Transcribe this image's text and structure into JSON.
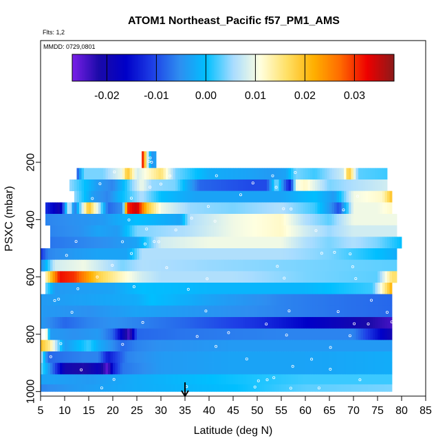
{
  "chart_data": {
    "type": "heatmap",
    "title": "ATOM1 Northeast_Pacific f57_PM1_AMS",
    "flights_label": "Flts: 1,2",
    "date_label": "MMDD: 0729,0801",
    "xlabel": "Latitude (deg N)",
    "ylabel": "PSXC (mbar)",
    "xlim": [
      5,
      85
    ],
    "ylim": [
      1000,
      60
    ],
    "y_reversed": true,
    "x_ticks": [
      "5",
      "10",
      "15",
      "20",
      "25",
      "30",
      "35",
      "40",
      "45",
      "50",
      "55",
      "60",
      "65",
      "70",
      "75",
      "80",
      "85"
    ],
    "y_ticks": [
      "200",
      "400",
      "600",
      "800",
      "1000"
    ],
    "colorbar": {
      "range": [
        -0.027,
        0.038
      ],
      "ticks": [
        "-0.02",
        "-0.01",
        "0.00",
        "0.01",
        "0.02",
        "0.03"
      ],
      "tick_values": [
        -0.02,
        -0.01,
        0.0,
        0.01,
        0.02,
        0.03
      ],
      "colors": [
        "#7a1fe8",
        "#1a0aa8",
        "#0000c8",
        "#1e3fe6",
        "#2e8ef0",
        "#00bfff",
        "#a8dcff",
        "#ffffe0",
        "#ffe066",
        "#ffb000",
        "#ff6a00",
        "#ee0000",
        "#8b1a1a"
      ]
    },
    "marker_latitude": 35,
    "levels": [
      {
        "p": 200,
        "range": [
          26,
          29
        ],
        "keys": [
          [
            26,
            0.036
          ],
          [
            27,
            0.012
          ],
          [
            28,
            -0.005
          ],
          [
            29,
            -0.003
          ]
        ]
      },
      {
        "p": 240,
        "range": [
          12.5,
          77
        ],
        "keys": [
          [
            12.5,
            -0.01
          ],
          [
            14,
            0.004
          ],
          [
            18,
            0.004
          ],
          [
            22,
            0.01
          ],
          [
            23,
            0.02
          ],
          [
            25,
            0.008
          ],
          [
            30,
            0.016
          ],
          [
            33,
            0.004
          ],
          [
            40,
            -0.002
          ],
          [
            48,
            -0.003
          ],
          [
            53,
            -0.004
          ],
          [
            56,
            -0.003
          ],
          [
            58,
            0.004
          ],
          [
            62,
            0.002
          ],
          [
            68,
            0.008
          ],
          [
            69,
            0.02
          ],
          [
            71,
            0.003
          ],
          [
            77,
            0.002
          ]
        ]
      },
      {
        "p": 280,
        "range": [
          11,
          77
        ],
        "keys": [
          [
            11,
            0.005
          ],
          [
            17,
            -0.004
          ],
          [
            20,
            -0.006
          ],
          [
            22,
            -0.001
          ],
          [
            26,
            0.01
          ],
          [
            28,
            0.005
          ],
          [
            33,
            0.004
          ],
          [
            38,
            -0.008
          ],
          [
            48,
            -0.01
          ],
          [
            52,
            -0.01
          ],
          [
            54,
            0.005
          ],
          [
            56,
            -0.01
          ],
          [
            57,
            -0.014
          ],
          [
            58,
            0.01
          ],
          [
            60,
            0.012
          ],
          [
            65,
            0.004
          ],
          [
            70,
            0.006
          ],
          [
            77,
            0.008
          ]
        ]
      },
      {
        "p": 320,
        "range": [
          12,
          78
        ],
        "keys": [
          [
            12,
            0.005
          ],
          [
            16,
            -0.004
          ],
          [
            19,
            -0.006
          ],
          [
            22,
            0.0
          ],
          [
            26,
            0.006
          ],
          [
            30,
            0.0
          ],
          [
            37,
            -0.003
          ],
          [
            45,
            -0.003
          ],
          [
            55,
            -0.003
          ],
          [
            62,
            0.0
          ],
          [
            66,
            -0.004
          ],
          [
            70,
            0.01
          ],
          [
            76,
            0.012
          ],
          [
            78,
            0.02
          ]
        ]
      },
      {
        "p": 360,
        "range": [
          6,
          78
        ],
        "keys": [
          [
            6,
            -0.012
          ],
          [
            9,
            -0.02
          ],
          [
            11,
            0.01
          ],
          [
            12,
            -0.008
          ],
          [
            15,
            0.02
          ],
          [
            17,
            0.008
          ],
          [
            19,
            -0.008
          ],
          [
            22,
            -0.005
          ],
          [
            23,
            0.03
          ],
          [
            25,
            0.035
          ],
          [
            27,
            0.02
          ],
          [
            30,
            0.01
          ],
          [
            36,
            0.005
          ],
          [
            45,
            0.004
          ],
          [
            55,
            0.006
          ],
          [
            62,
            0.002
          ],
          [
            65,
            -0.004
          ],
          [
            67,
            -0.01
          ],
          [
            70,
            0.01
          ],
          [
            75,
            0.01
          ],
          [
            78,
            0.012
          ]
        ]
      },
      {
        "p": 400,
        "range": [
          6,
          79
        ],
        "keys": [
          [
            6,
            -0.006
          ],
          [
            12,
            -0.005
          ],
          [
            18,
            -0.004
          ],
          [
            25,
            0.0
          ],
          [
            34,
            -0.003
          ],
          [
            36,
            0.006
          ],
          [
            45,
            0.01
          ],
          [
            55,
            0.012
          ],
          [
            60,
            0.006
          ],
          [
            65,
            0.003
          ],
          [
            70,
            0.01
          ],
          [
            79,
            0.01
          ]
        ]
      },
      {
        "p": 440,
        "range": [
          7,
          79
        ],
        "keys": [
          [
            7,
            -0.006
          ],
          [
            13,
            -0.005
          ],
          [
            17,
            -0.003
          ],
          [
            21,
            -0.004
          ],
          [
            25,
            0.004
          ],
          [
            35,
            0.006
          ],
          [
            45,
            0.01
          ],
          [
            55,
            0.012
          ],
          [
            60,
            0.008
          ],
          [
            65,
            0.005
          ],
          [
            70,
            0.008
          ],
          [
            79,
            0.008
          ]
        ]
      },
      {
        "p": 480,
        "range": [
          7,
          80
        ],
        "keys": [
          [
            7,
            -0.007
          ],
          [
            13,
            -0.006
          ],
          [
            19,
            -0.005
          ],
          [
            25,
            -0.003
          ],
          [
            30,
            0.008
          ],
          [
            40,
            0.01
          ],
          [
            55,
            0.01
          ],
          [
            60,
            0.006
          ],
          [
            65,
            0.004
          ],
          [
            70,
            0.006
          ],
          [
            75,
            0.004
          ],
          [
            80,
            0.0
          ]
        ]
      },
      {
        "p": 520,
        "range": [
          5,
          79
        ],
        "keys": [
          [
            5,
            -0.012
          ],
          [
            6.5,
            -0.006
          ],
          [
            12,
            -0.004
          ],
          [
            17,
            -0.003
          ],
          [
            23,
            -0.003
          ],
          [
            26,
            0.006
          ],
          [
            40,
            0.006
          ],
          [
            55,
            0.006
          ],
          [
            65,
            0.004
          ],
          [
            75,
            0.0
          ],
          [
            79,
            -0.002
          ]
        ]
      },
      {
        "p": 560,
        "range": [
          5,
          79
        ],
        "keys": [
          [
            5,
            -0.006
          ],
          [
            8,
            0.008
          ],
          [
            14,
            0.01
          ],
          [
            22,
            0.004
          ],
          [
            26,
            0.006
          ],
          [
            40,
            0.005
          ],
          [
            60,
            0.004
          ],
          [
            79,
            0.003
          ]
        ]
      },
      {
        "p": 600,
        "range": [
          6,
          79
        ],
        "keys": [
          [
            6,
            0.012
          ],
          [
            9,
            0.032
          ],
          [
            12,
            0.03
          ],
          [
            17,
            0.018
          ],
          [
            22,
            0.012
          ],
          [
            26,
            0.008
          ],
          [
            30,
            0.006
          ],
          [
            45,
            0.006
          ],
          [
            60,
            0.004
          ],
          [
            75,
            0.003
          ],
          [
            78,
            0.016
          ]
        ]
      },
      {
        "p": 640,
        "range": [
          6,
          78
        ],
        "keys": [
          [
            6,
            0.004
          ],
          [
            8,
            -0.004
          ],
          [
            20,
            -0.003
          ],
          [
            26,
            0.0
          ],
          [
            40,
            -0.001
          ],
          [
            60,
            -0.001
          ],
          [
            74,
            0.002
          ],
          [
            76,
            0.012
          ],
          [
            78,
            0.022
          ]
        ]
      },
      {
        "p": 680,
        "range": [
          5,
          78
        ],
        "keys": [
          [
            5,
            -0.004
          ],
          [
            15,
            -0.003
          ],
          [
            25,
            -0.002
          ],
          [
            28,
            0.0
          ],
          [
            40,
            -0.003
          ],
          [
            55,
            -0.006
          ],
          [
            65,
            -0.007
          ],
          [
            78,
            -0.008
          ]
        ]
      },
      {
        "p": 720,
        "range": [
          5,
          78
        ],
        "keys": [
          [
            5,
            -0.004
          ],
          [
            15,
            -0.005
          ],
          [
            25,
            -0.003
          ],
          [
            35,
            -0.004
          ],
          [
            45,
            -0.005
          ],
          [
            55,
            -0.006
          ],
          [
            65,
            -0.007
          ],
          [
            78,
            -0.008
          ]
        ]
      },
      {
        "p": 760,
        "range": [
          5,
          78
        ],
        "keys": [
          [
            5,
            -0.004
          ],
          [
            10,
            -0.008
          ],
          [
            15,
            -0.006
          ],
          [
            20,
            -0.005
          ],
          [
            25,
            -0.006
          ],
          [
            35,
            -0.008
          ],
          [
            50,
            -0.012
          ],
          [
            60,
            -0.016
          ],
          [
            70,
            -0.02
          ],
          [
            78,
            -0.024
          ]
        ]
      },
      {
        "p": 800,
        "range": [
          6,
          78
        ],
        "keys": [
          [
            6,
            0.015
          ],
          [
            7,
            -0.004
          ],
          [
            12,
            -0.005
          ],
          [
            17,
            -0.004
          ],
          [
            20,
            -0.008
          ],
          [
            22,
            -0.018
          ],
          [
            23.5,
            -0.025
          ],
          [
            25,
            -0.008
          ],
          [
            35,
            -0.007
          ],
          [
            55,
            -0.006
          ],
          [
            70,
            -0.006
          ],
          [
            78,
            -0.02
          ]
        ]
      },
      {
        "p": 840,
        "range": [
          5,
          78
        ],
        "keys": [
          [
            5,
            0.02
          ],
          [
            7,
            0.014
          ],
          [
            10,
            -0.004
          ],
          [
            15,
            0.002
          ],
          [
            17,
            -0.002
          ],
          [
            19,
            -0.004
          ],
          [
            22,
            -0.008
          ],
          [
            25,
            -0.006
          ],
          [
            30,
            -0.005
          ],
          [
            45,
            -0.004
          ],
          [
            60,
            -0.004
          ],
          [
            78,
            -0.004
          ]
        ]
      },
      {
        "p": 880,
        "range": [
          5,
          78
        ],
        "keys": [
          [
            5,
            0.008
          ],
          [
            6.5,
            -0.008
          ],
          [
            14,
            -0.006
          ],
          [
            17,
            -0.006
          ],
          [
            19,
            -0.014
          ],
          [
            21,
            -0.01
          ],
          [
            23,
            -0.006
          ],
          [
            30,
            -0.004
          ],
          [
            45,
            -0.003
          ],
          [
            60,
            -0.003
          ],
          [
            78,
            -0.002
          ]
        ]
      },
      {
        "p": 920,
        "range": [
          5,
          78
        ],
        "keys": [
          [
            5,
            0.004
          ],
          [
            8,
            -0.01
          ],
          [
            10,
            -0.02
          ],
          [
            14,
            -0.022
          ],
          [
            17,
            -0.018
          ],
          [
            19,
            -0.026
          ],
          [
            20,
            -0.014
          ],
          [
            22,
            -0.007
          ],
          [
            30,
            -0.004
          ],
          [
            45,
            -0.003
          ],
          [
            60,
            -0.003
          ],
          [
            78,
            -0.002
          ]
        ]
      },
      {
        "p": 960,
        "range": [
          5,
          78
        ],
        "keys": [
          [
            5,
            -0.003
          ],
          [
            15,
            -0.004
          ],
          [
            25,
            -0.002
          ],
          [
            40,
            0.0
          ],
          [
            60,
            0.002
          ],
          [
            78,
            0.002
          ]
        ]
      },
      {
        "p": 990,
        "range": [
          5,
          78
        ],
        "keys": [
          [
            5,
            -0.006
          ],
          [
            12,
            -0.004
          ],
          [
            25,
            -0.002
          ],
          [
            45,
            0.0
          ],
          [
            60,
            0.003
          ],
          [
            78,
            0.004
          ]
        ]
      }
    ]
  }
}
